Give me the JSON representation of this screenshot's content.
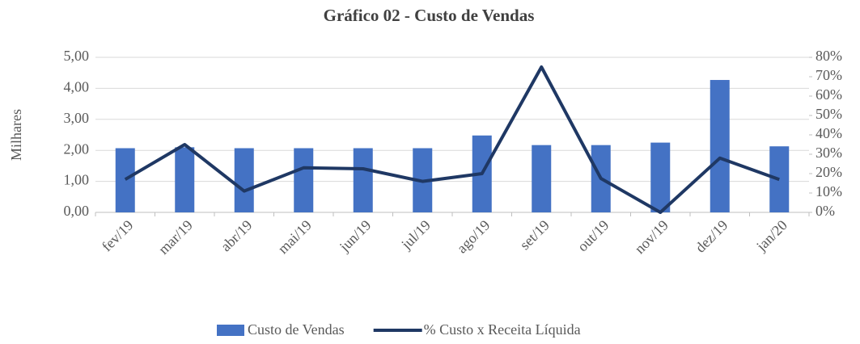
{
  "chart_data": {
    "type": "combo",
    "title": "Gráfico 02 - Custo de Vendas",
    "y_label": "Milhares",
    "categories": [
      "fev/19",
      "mar/19",
      "abr/19",
      "mai/19",
      "jun/19",
      "jul/19",
      "ago/19",
      "set/19",
      "out/19",
      "nov/19",
      "dez/19",
      "jan/20"
    ],
    "series": [
      {
        "name": "Custo de Vendas",
        "type": "bar",
        "color": "#4472c4",
        "axis": "y",
        "values": [
          2.07,
          2.1,
          2.07,
          2.07,
          2.07,
          2.07,
          2.48,
          2.17,
          2.17,
          2.25,
          4.27,
          2.13
        ]
      },
      {
        "name": "% Custo x Receita Líquida",
        "type": "line",
        "color": "#1f3864",
        "axis": "y2",
        "values": [
          17,
          35,
          11,
          23,
          22.5,
          16,
          20,
          75,
          17.5,
          0,
          28,
          17
        ]
      }
    ],
    "ylim": [
      0,
      5
    ],
    "yticks": [
      {
        "value": 0,
        "label": "0,00"
      },
      {
        "value": 1,
        "label": "1,00"
      },
      {
        "value": 2,
        "label": "2,00"
      },
      {
        "value": 3,
        "label": "3,00"
      },
      {
        "value": 4,
        "label": "4,00"
      },
      {
        "value": 5,
        "label": "5,00"
      }
    ],
    "y2lim": [
      0,
      80
    ],
    "y2ticks": [
      {
        "value": 0,
        "label": "0%"
      },
      {
        "value": 10,
        "label": "10%"
      },
      {
        "value": 20,
        "label": "20%"
      },
      {
        "value": 30,
        "label": "30%"
      },
      {
        "value": 40,
        "label": "40%"
      },
      {
        "value": 50,
        "label": "50%"
      },
      {
        "value": 60,
        "label": "60%"
      },
      {
        "value": 70,
        "label": "70%"
      },
      {
        "value": 80,
        "label": "80%"
      }
    ],
    "grid": true,
    "legend": "bottom"
  }
}
